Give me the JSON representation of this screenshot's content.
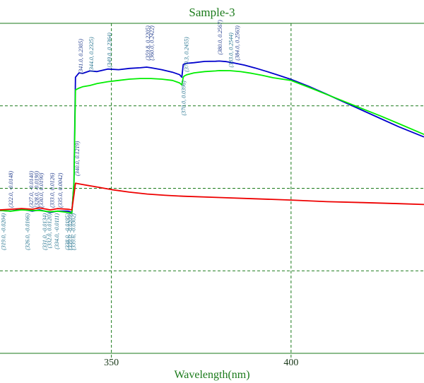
{
  "chart_data": {
    "type": "line",
    "title": "Sample-3",
    "xlabel": "Wavelength(nm)",
    "ylabel": "",
    "x_ticks": [
      350,
      400
    ],
    "xlim": [
      319,
      437
    ],
    "ylim": [
      -0.23,
      0.29
    ],
    "grid": true,
    "series": [
      {
        "color": "#0000cc",
        "x": [
          319,
          322,
          325,
          328,
          330,
          333,
          335,
          338,
          339,
          339.6,
          340,
          341,
          342,
          344,
          346,
          349,
          352,
          355,
          358,
          359.8,
          361,
          364,
          367,
          369,
          369.6,
          370,
          370.3,
          371,
          373,
          376,
          379,
          380,
          382,
          384,
          387,
          390,
          393,
          396,
          400,
          405,
          410,
          415,
          420,
          425,
          430,
          437
        ],
        "y": [
          -0.005,
          -0.006,
          -0.003,
          -0.006,
          -0.004,
          -0.008,
          -0.006,
          -0.006,
          -0.008,
          0.04,
          0.205,
          0.212,
          0.211,
          0.215,
          0.214,
          0.218,
          0.217,
          0.219,
          0.22,
          0.221,
          0.22,
          0.217,
          0.213,
          0.209,
          0.205,
          0.225,
          0.226,
          0.227,
          0.228,
          0.23,
          0.2302,
          0.2305,
          0.2296,
          0.2277,
          0.2242,
          0.2196,
          0.2145,
          0.2092,
          0.2016,
          0.1906,
          0.1781,
          0.1653,
          0.1525,
          0.1397,
          0.127,
          0.111
        ]
      },
      {
        "color": "#00ee00",
        "x": [
          319,
          322,
          325,
          328,
          330,
          333,
          335,
          338,
          339,
          339.6,
          340,
          341,
          342,
          344,
          346,
          349,
          352,
          355,
          358,
          361,
          364,
          367,
          369,
          369.6,
          370,
          370.3,
          371,
          373,
          376,
          379,
          380,
          383,
          386,
          389,
          392,
          395,
          400,
          405,
          410,
          415,
          420,
          425,
          430,
          437
        ],
        "y": [
          -0.005,
          -0.006,
          -0.004,
          -0.005,
          -0.005,
          -0.007,
          -0.006,
          -0.008,
          -0.009,
          0.04,
          0.185,
          0.188,
          0.19,
          0.192,
          0.195,
          0.198,
          0.2,
          0.202,
          0.203,
          0.203,
          0.202,
          0.2,
          0.196,
          0.193,
          0.205,
          0.207,
          0.209,
          0.212,
          0.214,
          0.215,
          0.2155,
          0.2154,
          0.2138,
          0.2113,
          0.208,
          0.2043,
          0.1999,
          0.1891,
          0.1778,
          0.1665,
          0.1551,
          0.1438,
          0.1319,
          0.115
        ]
      },
      {
        "color": "#ee0000",
        "x": [
          319,
          322,
          325,
          328,
          330,
          333,
          335,
          338,
          339,
          339.6,
          340,
          342,
          345,
          350,
          355,
          360,
          365,
          370,
          380,
          390,
          400,
          410,
          420,
          430,
          437
        ],
        "y": [
          -0.004,
          -0.003,
          -0.002,
          -0.003,
          -0.001,
          -0.004,
          -0.002,
          -0.003,
          -0.004,
          0.02,
          0.038,
          0.036,
          0.033,
          0.028,
          0.024,
          0.021,
          0.019,
          0.0175,
          0.0155,
          0.0135,
          0.0115,
          0.009,
          0.0075,
          0.0058,
          0.0045
        ]
      }
    ],
    "annotations": [
      {
        "text": "(319.0, -0.0204)",
        "x": 320.5,
        "y": -0.005,
        "color": "#1f6f8b",
        "anchor": "bottom"
      },
      {
        "text": "(322.0, -0.0148)",
        "x": 322.5,
        "y": -0.005,
        "color": "#1f3a8b",
        "anchor": "top"
      },
      {
        "text": "(326.0, -0.0166)",
        "x": 327.2,
        "y": -0.005,
        "color": "#1f6f8b",
        "anchor": "bottom"
      },
      {
        "text": "(327.0, -0.0140)",
        "x": 328.2,
        "y": -0.005,
        "color": "#1f3a8b",
        "anchor": "top"
      },
      {
        "text": "(328.0, -0.0190)",
        "x": 329.7,
        "y": -0.005,
        "color": "#1f3a8b",
        "anchor": "top"
      },
      {
        "text": "(330.0, 0.0190)",
        "x": 331.0,
        "y": -0.005,
        "color": "#1f3a8b",
        "anchor": "top"
      },
      {
        "text": "(331.0, -0.0134)",
        "x": 332.0,
        "y": -0.005,
        "color": "#1f6f8b",
        "anchor": "bottom"
      },
      {
        "text": "(332.0, 0.0120)",
        "x": 333.3,
        "y": -0.005,
        "color": "#1f6f8b",
        "anchor": "bottom"
      },
      {
        "text": "(333.0, 0.0126)",
        "x": 334.0,
        "y": -0.005,
        "color": "#1f3a8b",
        "anchor": "top"
      },
      {
        "text": "(334.0, -0.0111)",
        "x": 335.3,
        "y": -0.005,
        "color": "#1f6f8b",
        "anchor": "bottom"
      },
      {
        "text": "(335.0, 0.0042)",
        "x": 336.3,
        "y": -0.005,
        "color": "#1f3a8b",
        "anchor": "top"
      },
      {
        "text": "(338.0, -0.0195)",
        "x": 338.3,
        "y": -0.005,
        "color": "#1f6f8b",
        "anchor": "bottom"
      },
      {
        "text": "(339.0, -0.0209)",
        "x": 339.1,
        "y": -0.005,
        "color": "#1f6f8b",
        "anchor": "bottom"
      },
      {
        "text": "(339.6, -0.0302)",
        "x": 339.9,
        "y": -0.005,
        "color": "#1f6f8b",
        "anchor": "bottom"
      },
      {
        "text": "(340.0, 0.1219)",
        "x": 341.0,
        "y": 0.045,
        "color": "#1f3a8b",
        "anchor": "top"
      },
      {
        "text": "(341.0, 0.2305)",
        "x": 342.0,
        "y": 0.206,
        "color": "#1f3a8b",
        "anchor": "top"
      },
      {
        "text": "(344.0, 0.2325)",
        "x": 345.0,
        "y": 0.209,
        "color": "#1f6f8b",
        "anchor": "top"
      },
      {
        "text": "(349.0, 0.2364)",
        "x": 350.0,
        "y": 0.216,
        "color": "#1f6f8b",
        "anchor": "top"
      },
      {
        "text": "(359.8, 0.2205)",
        "x": 360.7,
        "y": 0.227,
        "color": "#1f3a8b",
        "anchor": "top"
      },
      {
        "text": "(360.0, 0.2422)",
        "x": 361.8,
        "y": 0.227,
        "color": "#1f3a8b",
        "anchor": "top"
      },
      {
        "text": "(370.0, 0.0396)",
        "x": 370.6,
        "y": 0.204,
        "color": "#1f6f8b",
        "anchor": "bottom"
      },
      {
        "text": "(370.3, 0.2455)",
        "x": 371.4,
        "y": 0.209,
        "color": "#1f6f8b",
        "anchor": "top"
      },
      {
        "text": "(380.0, 0.2567)",
        "x": 380.8,
        "y": 0.236,
        "color": "#1f3a8b",
        "anchor": "top"
      },
      {
        "text": "(383.0, 0.2544)",
        "x": 383.8,
        "y": 0.216,
        "color": "#1f6f8b",
        "anchor": "top"
      },
      {
        "text": "(384.0, 0.2563)",
        "x": 385.6,
        "y": 0.227,
        "color": "#1f3a8b",
        "anchor": "top"
      }
    ]
  }
}
